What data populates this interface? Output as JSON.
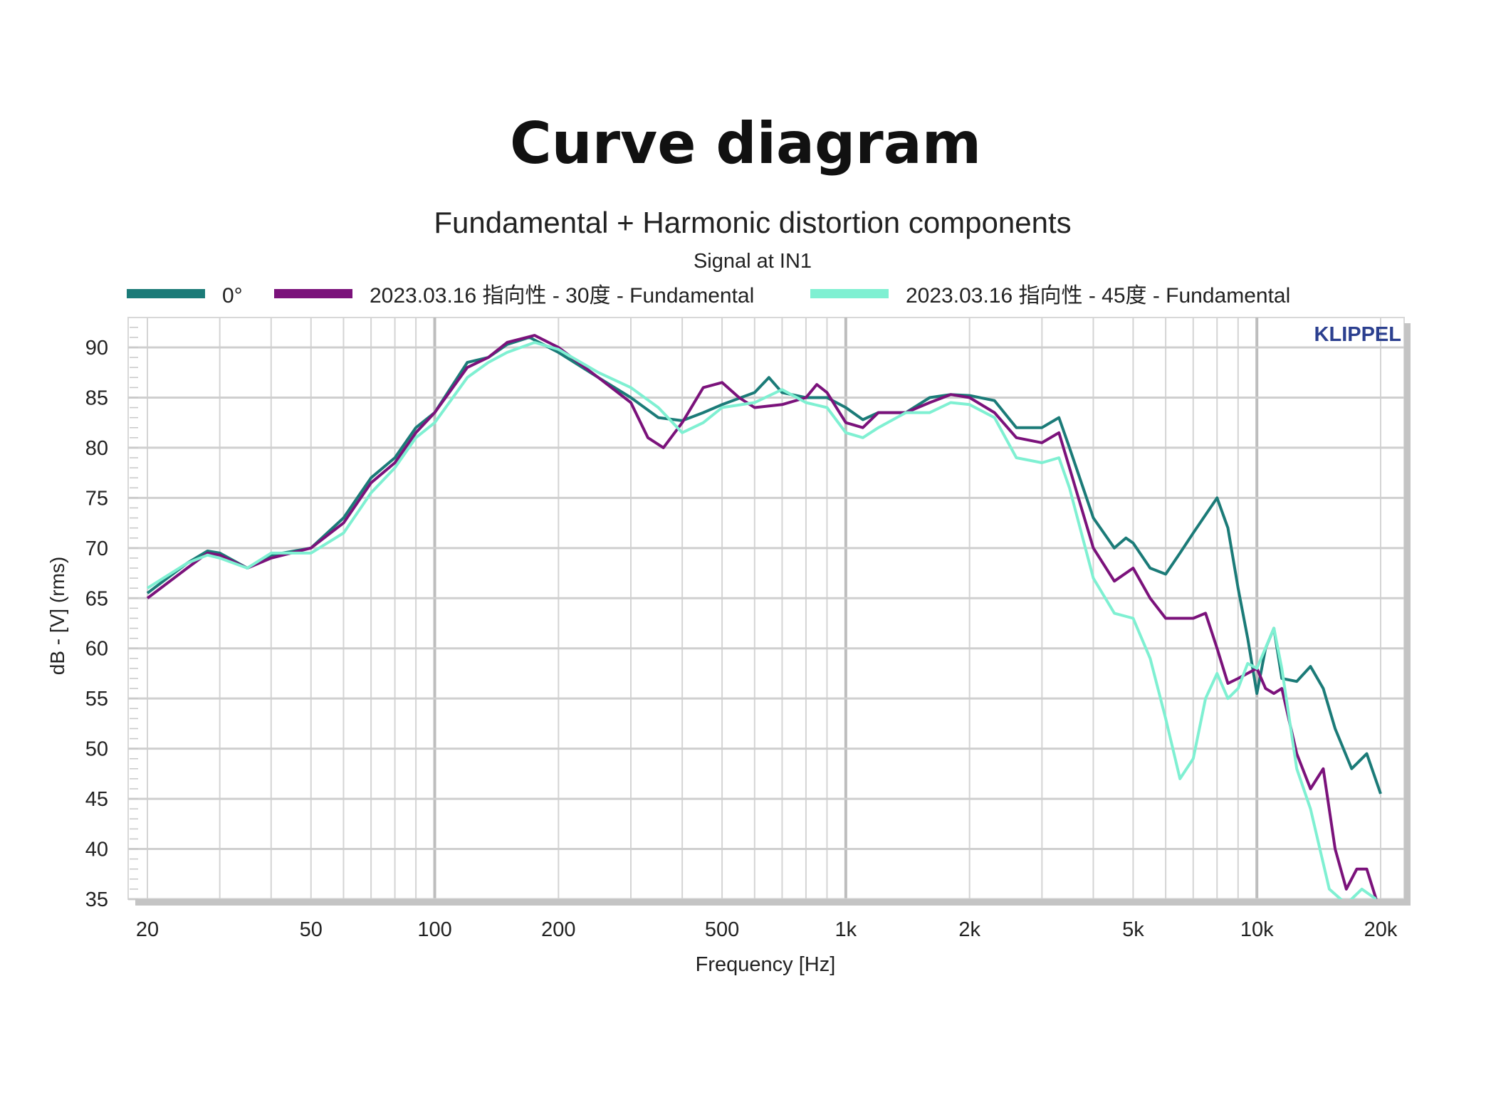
{
  "page_title": "Curve diagram",
  "chart_data": {
    "type": "line",
    "title": "Fundamental + Harmonic distortion components",
    "subtitle": "Signal at IN1",
    "watermark": "KLIPPEL",
    "xlabel": "Frequency [Hz]",
    "ylabel": "dB - [V]  (rms)",
    "xscale": "log",
    "xlim": [
      20,
      20000
    ],
    "ylim": [
      35,
      92
    ],
    "grid": true,
    "legend_position": "top",
    "xticks": [
      {
        "v": 20,
        "l": "20"
      },
      {
        "v": 50,
        "l": "50"
      },
      {
        "v": 100,
        "l": "100"
      },
      {
        "v": 200,
        "l": "200"
      },
      {
        "v": 500,
        "l": "500"
      },
      {
        "v": 1000,
        "l": "1k"
      },
      {
        "v": 2000,
        "l": "2k"
      },
      {
        "v": 5000,
        "l": "5k"
      },
      {
        "v": 10000,
        "l": "10k"
      },
      {
        "v": 20000,
        "l": "20k"
      }
    ],
    "yticks": [
      35,
      40,
      45,
      50,
      55,
      60,
      65,
      70,
      75,
      80,
      85,
      90
    ],
    "series": [
      {
        "name": "0°",
        "color": "#1b7b78",
        "x": [
          20,
          25,
          28,
          30,
          35,
          40,
          50,
          60,
          70,
          80,
          90,
          100,
          120,
          135,
          150,
          170,
          200,
          250,
          300,
          350,
          400,
          450,
          500,
          600,
          650,
          700,
          800,
          900,
          1000,
          1100,
          1200,
          1400,
          1600,
          1800,
          2000,
          2300,
          2600,
          3000,
          3300,
          3500,
          4000,
          4500,
          4800,
          5000,
          5500,
          6000,
          6500,
          7000,
          8000,
          8500,
          9000,
          9500,
          10000,
          10500,
          11000,
          11500,
          12500,
          13500,
          14500,
          15500,
          17000,
          18500,
          20000
        ],
        "y": [
          65.5,
          68.5,
          69.7,
          69.5,
          68,
          69.3,
          70,
          73,
          77,
          79,
          82,
          83.5,
          88.5,
          89,
          90.3,
          91,
          89.5,
          87,
          85,
          83,
          82.7,
          83.5,
          84.3,
          85.5,
          87,
          85.5,
          85,
          85,
          84,
          82.8,
          83.5,
          83.5,
          85,
          85.3,
          85.2,
          84.7,
          82,
          82,
          83,
          80,
          73,
          70,
          71,
          70.5,
          68,
          67.4,
          69.5,
          71.5,
          75,
          72,
          66,
          61,
          55.5,
          60,
          62,
          57,
          56.7,
          58.2,
          56,
          52,
          48,
          49.5,
          45.5
        ]
      },
      {
        "name": "2023.03.16 指向性 - 30度 - Fundamental",
        "color": "#7b127b",
        "x": [
          20,
          25,
          28,
          30,
          35,
          40,
          50,
          60,
          70,
          80,
          90,
          100,
          120,
          135,
          150,
          175,
          200,
          250,
          300,
          330,
          360,
          400,
          450,
          500,
          550,
          600,
          700,
          800,
          850,
          900,
          1000,
          1100,
          1200,
          1400,
          1600,
          1800,
          2000,
          2300,
          2600,
          3000,
          3300,
          3500,
          4000,
          4500,
          5000,
          5500,
          6000,
          7000,
          7500,
          8000,
          8500,
          9000,
          10000,
          10500,
          11000,
          11500,
          12500,
          13500,
          14500,
          15500,
          16500,
          17500,
          18500,
          19500
        ],
        "y": [
          65,
          68,
          69.5,
          69.3,
          68,
          69,
          70,
          72.5,
          76.5,
          78.5,
          81.5,
          83.5,
          88,
          89,
          90.5,
          91.2,
          90,
          87,
          84.5,
          81,
          80,
          82.5,
          86,
          86.5,
          85,
          84,
          84.3,
          85,
          86.3,
          85.5,
          82.5,
          82,
          83.5,
          83.5,
          84.5,
          85.3,
          85,
          83.5,
          81,
          80.5,
          81.5,
          78,
          70,
          66.7,
          68,
          65,
          63,
          63,
          63.5,
          60,
          56.5,
          57,
          58,
          56,
          55.5,
          56,
          49.5,
          46,
          48,
          40,
          36,
          38,
          38,
          35
        ]
      },
      {
        "name": "2023.03.16 指向性 - 45度 - Fundamental",
        "color": "#7ff0d2",
        "x": [
          20,
          25,
          28,
          30,
          35,
          40,
          50,
          60,
          70,
          80,
          90,
          100,
          120,
          135,
          150,
          175,
          200,
          250,
          300,
          350,
          400,
          450,
          500,
          600,
          700,
          800,
          900,
          1000,
          1100,
          1200,
          1400,
          1600,
          1800,
          2000,
          2300,
          2600,
          3000,
          3300,
          3500,
          4000,
          4500,
          5000,
          5500,
          6000,
          6500,
          7000,
          7500,
          8000,
          8500,
          9000,
          9500,
          10000,
          11000,
          11500,
          12500,
          13500,
          15000,
          16500,
          18000,
          19500
        ],
        "y": [
          66,
          68.5,
          69.3,
          69,
          68,
          69.5,
          69.5,
          71.5,
          75.5,
          78,
          81,
          82.5,
          87,
          88.5,
          89.5,
          90.5,
          89.8,
          87.5,
          86,
          84,
          81.5,
          82.5,
          84,
          84.5,
          85.8,
          84.5,
          84,
          81.5,
          81,
          82,
          83.5,
          83.5,
          84.5,
          84.3,
          83,
          79,
          78.5,
          79,
          76,
          67,
          63.5,
          63,
          59,
          53,
          47,
          49,
          55,
          57.5,
          55,
          56,
          58.5,
          58,
          62,
          58,
          48,
          44,
          36,
          34.5,
          36,
          35
        ]
      }
    ]
  }
}
